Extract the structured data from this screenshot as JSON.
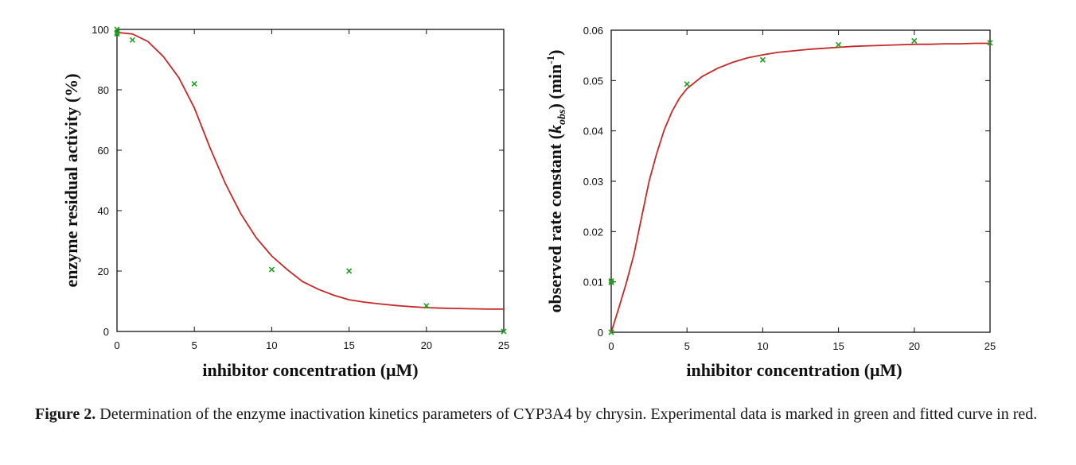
{
  "chart_data": [
    {
      "type": "scatter",
      "title": "",
      "xlabel": "inhibitor concentration (μM)",
      "ylabel": "enzyme residual activity (%)",
      "xlim": [
        0,
        25
      ],
      "ylim": [
        0,
        100
      ],
      "xticks": [
        "0",
        "5",
        "10",
        "15",
        "20",
        "25"
      ],
      "yticks": [
        "0",
        "20",
        "40",
        "60",
        "80",
        "100"
      ],
      "grid": false,
      "series": [
        {
          "kind": "points",
          "marker": "x",
          "color": "#1fa01f",
          "x": [
            0,
            0,
            0,
            1,
            5,
            10,
            15,
            20,
            25
          ],
          "y": [
            100,
            99,
            98.5,
            96.5,
            82,
            20.5,
            20,
            8.5,
            0
          ]
        },
        {
          "kind": "fitted-curve",
          "color": "#c62828",
          "x": [
            0,
            1,
            2,
            3,
            4,
            5,
            6,
            7,
            8,
            9,
            10,
            11,
            12,
            13,
            14,
            15,
            16,
            17,
            18,
            19,
            20,
            21,
            22,
            23,
            24,
            25
          ],
          "y": [
            99,
            98.5,
            96,
            91,
            84,
            74,
            61,
            49,
            39,
            31,
            25,
            20.5,
            16.5,
            14,
            12,
            10.5,
            9.7,
            9.1,
            8.6,
            8.2,
            7.9,
            7.7,
            7.6,
            7.5,
            7.4,
            7.4
          ]
        }
      ]
    },
    {
      "type": "scatter",
      "title": "",
      "xlabel": "inhibitor concentration (μM)",
      "ylabel_main": "observed rate constant (",
      "ylabel_k": "k",
      "ylabel_sub": "obs",
      "ylabel_mid": ") (min",
      "ylabel_sup": "-1",
      "ylabel_end": ")",
      "xlim": [
        0,
        25
      ],
      "ylim": [
        0,
        0.06
      ],
      "xticks": [
        "0",
        "5",
        "10",
        "15",
        "20",
        "25"
      ],
      "yticks": [
        "0",
        "0.01",
        "0.02",
        "0.03",
        "0.04",
        "0.05",
        "0.06"
      ],
      "grid": false,
      "series": [
        {
          "kind": "points",
          "marker": "x",
          "color": "#1fa01f",
          "x": [
            0,
            0,
            0,
            5,
            10,
            15,
            20,
            25
          ],
          "y": [
            0.0102,
            0.0099,
            0,
            0.0493,
            0.0541,
            0.0571,
            0.0579,
            0.0575
          ]
        },
        {
          "kind": "fitted-curve",
          "color": "#c62828",
          "x": [
            0,
            0.5,
            1,
            1.5,
            2,
            2.5,
            3,
            3.5,
            4,
            4.5,
            5,
            6,
            7,
            8,
            9,
            10,
            11,
            12,
            13,
            14,
            15,
            16,
            17,
            18,
            19,
            20,
            21,
            22,
            23,
            24,
            25
          ],
          "y": [
            0,
            0.0048,
            0.0098,
            0.0155,
            0.0228,
            0.03,
            0.0355,
            0.0402,
            0.0438,
            0.0465,
            0.0484,
            0.0508,
            0.0524,
            0.0536,
            0.0545,
            0.0551,
            0.0556,
            0.0559,
            0.0562,
            0.0564,
            0.0566,
            0.0568,
            0.0569,
            0.057,
            0.0571,
            0.0572,
            0.0572,
            0.0573,
            0.0573,
            0.0574,
            0.0574
          ]
        }
      ]
    }
  ],
  "caption": {
    "label": "Figure 2.",
    "text": " Determination of the enzyme inactivation kinetics parameters of CYP3A4 by chrysin. Experimental data is marked in green and fitted curve in red."
  }
}
